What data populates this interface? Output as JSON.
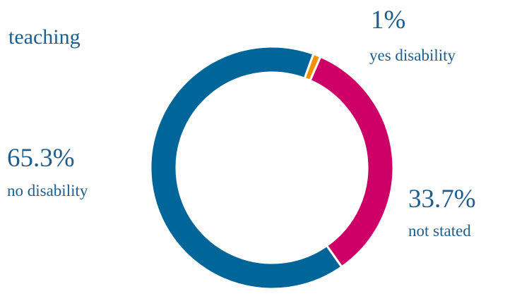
{
  "chart_data": {
    "type": "pie",
    "title": "teaching",
    "donut": true,
    "slices": [
      {
        "name": "yes disability",
        "value": 1,
        "label": "1%",
        "color": "#f39200"
      },
      {
        "name": "not stated",
        "value": 33.7,
        "label": "33.7%",
        "color": "#cc0066"
      },
      {
        "name": "no disability",
        "value": 65.3,
        "label": "65.3%",
        "color": "#006699"
      }
    ],
    "start_angle_deg": 20,
    "direction": "clockwise",
    "label_color": "#1f5d8c"
  }
}
